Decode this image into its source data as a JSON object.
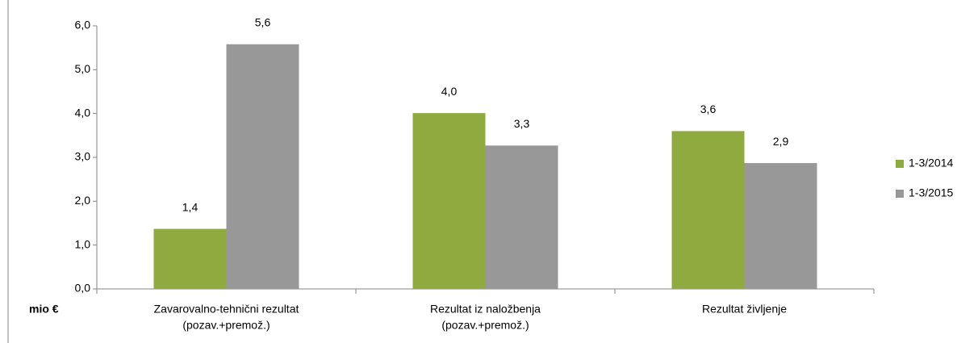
{
  "chart_data": {
    "type": "bar",
    "categories": [
      [
        "Zavarovalno-tehnični rezultat",
        "(pozav.+premož.)"
      ],
      [
        "Rezultat iz naložbenja",
        "(pozav.+premož.)"
      ],
      [
        "Rezultat življenje"
      ]
    ],
    "series": [
      {
        "name": "1-3/2014",
        "color": "#8faa3f",
        "values": [
          1.37,
          4.01,
          3.6
        ],
        "value_labels": [
          "1,4",
          "4,0",
          "3,6"
        ]
      },
      {
        "name": "1-3/2015",
        "color": "#989898",
        "values": [
          5.58,
          3.27,
          2.87
        ],
        "value_labels": [
          "5,6",
          "3,3",
          "2,9"
        ]
      }
    ],
    "ylabel": "mio €",
    "ylim": [
      0,
      6
    ],
    "yticks": [
      {
        "value": 0,
        "label": "0,0"
      },
      {
        "value": 1,
        "label": "1,0"
      },
      {
        "value": 2,
        "label": "2,0"
      },
      {
        "value": 3,
        "label": "3,0"
      },
      {
        "value": 4,
        "label": "4,0"
      },
      {
        "value": 5,
        "label": "5,0"
      },
      {
        "value": 6,
        "label": "6,0"
      }
    ],
    "legend": "right"
  }
}
